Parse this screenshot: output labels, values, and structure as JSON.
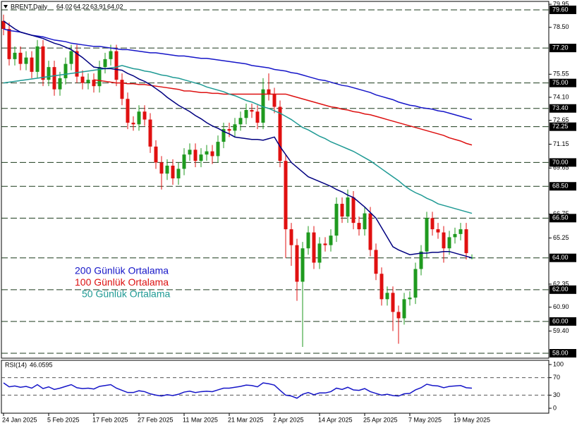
{
  "chart_data": [
    {
      "type": "candlestick",
      "title": "BRENT,Daily",
      "categories": [
        "24 Jan 2025",
        null,
        null,
        null,
        null,
        null,
        null,
        null,
        "5 Feb 2025",
        null,
        null,
        null,
        null,
        null,
        null,
        null,
        "17 Feb 2025",
        null,
        null,
        null,
        null,
        null,
        null,
        null,
        "27 Feb 2025",
        null,
        null,
        null,
        null,
        null,
        null,
        null,
        "11 Mar 2025",
        null,
        null,
        null,
        null,
        null,
        null,
        null,
        "21 Mar 2025",
        null,
        null,
        null,
        null,
        null,
        null,
        null,
        "2 Apr 2025",
        null,
        null,
        null,
        null,
        null,
        null,
        null,
        "14 Apr 2025",
        null,
        null,
        null,
        null,
        null,
        null,
        null,
        "25 Apr 2025",
        null,
        null,
        null,
        null,
        null,
        null,
        null,
        "7 May 2025",
        null,
        null,
        null,
        null,
        null,
        null,
        null,
        "19 May 2025",
        null,
        null,
        null
      ],
      "open": [
        78.9,
        78.4,
        76.5,
        76.9,
        76.2,
        76.6,
        75.7,
        77.3,
        75.2,
        76.0,
        74.6,
        75.3,
        76.2,
        77.0,
        75.4,
        75.0,
        75.2,
        74.8,
        76.0,
        76.5,
        77.0,
        75.2,
        74.0,
        72.5,
        72.4,
        73.2,
        72.7,
        71.0,
        70.0,
        69.3,
        69.8,
        69.0,
        69.6,
        70.5,
        70.8,
        70.1,
        70.5,
        70.7,
        70.4,
        71.3,
        72.1,
        72.0,
        72.4,
        72.8,
        73.3,
        73.2,
        72.5,
        74.6,
        74.3,
        73.5,
        70.1,
        65.8,
        64.8,
        62.5,
        64.6,
        65.6,
        63.7,
        64.9,
        64.8,
        65.4,
        67.4,
        66.6,
        67.8,
        66.2,
        65.8,
        66.8,
        64.5,
        63.0,
        61.4,
        61.8,
        60.6,
        60.2,
        61.4,
        61.5,
        63.3,
        64.4,
        66.5,
        65.8,
        65.6,
        64.6,
        65.3,
        65.5,
        65.8,
        64.02
      ],
      "high": [
        79.3,
        78.8,
        77.3,
        77.3,
        77.0,
        77.0,
        77.7,
        77.7,
        76.4,
        76.4,
        75.7,
        76.6,
        77.4,
        77.4,
        75.8,
        75.6,
        75.6,
        76.4,
        76.9,
        77.4,
        77.4,
        75.6,
        74.4,
        72.9,
        73.6,
        73.6,
        73.1,
        71.4,
        70.4,
        70.2,
        70.2,
        70.0,
        70.9,
        71.2,
        71.2,
        70.9,
        71.1,
        71.1,
        71.7,
        72.5,
        72.5,
        72.8,
        73.2,
        73.7,
        73.7,
        73.6,
        75.3,
        75.6,
        74.7,
        73.9,
        70.5,
        66.2,
        65.2,
        65.0,
        66.0,
        66.0,
        65.3,
        65.3,
        65.8,
        67.8,
        67.8,
        68.3,
        68.2,
        66.6,
        67.2,
        67.2,
        64.9,
        63.4,
        62.2,
        62.2,
        61.0,
        61.8,
        61.9,
        63.7,
        64.8,
        66.9,
        66.9,
        66.2,
        66.0,
        65.7,
        65.9,
        66.2,
        66.2,
        64.22
      ],
      "low": [
        78.0,
        76.1,
        76.1,
        75.8,
        75.8,
        75.3,
        75.3,
        74.8,
        74.8,
        74.2,
        74.2,
        74.9,
        75.8,
        75.0,
        74.6,
        74.6,
        74.4,
        74.4,
        75.6,
        76.1,
        74.8,
        73.6,
        72.1,
        72.0,
        72.0,
        72.3,
        70.6,
        69.6,
        68.3,
        68.9,
        68.6,
        68.6,
        69.2,
        70.1,
        69.7,
        69.7,
        70.1,
        69.9,
        70.0,
        70.9,
        71.6,
        71.6,
        72.0,
        72.4,
        72.8,
        72.1,
        72.1,
        73.9,
        73.1,
        69.7,
        64.0,
        63.5,
        61.3,
        58.4,
        64.2,
        63.3,
        63.3,
        64.4,
        64.4,
        65.0,
        66.2,
        66.2,
        65.8,
        65.4,
        65.4,
        64.1,
        62.6,
        61.0,
        61.0,
        59.4,
        58.6,
        59.8,
        61.0,
        61.1,
        62.9,
        64.0,
        65.4,
        65.2,
        63.7,
        64.2,
        64.9,
        65.1,
        63.9,
        63.91
      ],
      "close": [
        78.4,
        76.5,
        76.9,
        76.2,
        76.6,
        75.7,
        77.3,
        75.2,
        76.0,
        74.6,
        75.3,
        76.2,
        77.0,
        75.4,
        75.0,
        75.2,
        74.8,
        76.0,
        76.5,
        77.0,
        75.2,
        74.0,
        72.5,
        72.4,
        73.2,
        72.7,
        71.0,
        70.0,
        69.3,
        69.8,
        69.0,
        69.6,
        70.5,
        70.8,
        70.1,
        70.5,
        70.7,
        70.4,
        71.3,
        72.1,
        72.0,
        72.4,
        72.8,
        73.3,
        73.2,
        72.5,
        74.6,
        74.3,
        73.5,
        70.1,
        65.8,
        64.8,
        62.5,
        64.6,
        65.6,
        63.7,
        64.9,
        64.8,
        65.4,
        67.4,
        66.6,
        67.8,
        66.2,
        65.8,
        66.8,
        64.5,
        63.0,
        61.4,
        61.8,
        60.6,
        60.2,
        61.4,
        61.5,
        63.3,
        64.4,
        66.5,
        65.8,
        65.6,
        64.6,
        65.3,
        65.5,
        65.8,
        64.3,
        64.02
      ],
      "up_color": "#1f9a1f",
      "down_color": "#e01010",
      "series": [
        {
          "name": "200 Günlük Ortalama",
          "color": "#1515c8",
          "values": [
            78.4,
            78.3,
            78.25,
            78.2,
            78.1,
            78.0,
            77.95,
            77.9,
            77.8,
            77.7,
            77.65,
            77.6,
            77.5,
            77.45,
            77.4,
            77.35,
            77.3,
            77.3,
            77.25,
            77.2,
            77.15,
            77.1,
            77.1,
            77.05,
            77.0,
            76.95,
            76.9,
            76.9,
            76.85,
            76.8,
            76.75,
            76.7,
            76.7,
            76.65,
            76.6,
            76.55,
            76.55,
            76.5,
            76.45,
            76.4,
            76.35,
            76.3,
            76.25,
            76.2,
            76.1,
            76.05,
            76.0,
            75.95,
            75.85,
            75.8,
            75.75,
            75.65,
            75.6,
            75.5,
            75.4,
            75.3,
            75.2,
            75.15,
            75.05,
            74.95,
            74.85,
            74.8,
            74.7,
            74.6,
            74.5,
            74.4,
            74.25,
            74.15,
            74.05,
            73.95,
            73.8,
            73.7,
            73.6,
            73.55,
            73.45,
            73.4,
            73.35,
            73.25,
            73.2,
            73.1,
            73.0,
            72.9,
            72.8,
            72.7
          ]
        },
        {
          "name": "100 Günlük Ortalama",
          "color": "#dd1010",
          "values": [
            null,
            null,
            null,
            null,
            null,
            null,
            null,
            null,
            null,
            null,
            null,
            null,
            null,
            null,
            null,
            null,
            75.2,
            75.15,
            75.1,
            75.05,
            75.0,
            75.0,
            74.95,
            74.95,
            74.9,
            74.9,
            74.85,
            74.8,
            74.75,
            74.7,
            74.65,
            74.6,
            74.5,
            74.5,
            74.45,
            74.4,
            74.4,
            74.35,
            74.35,
            74.3,
            74.3,
            74.3,
            74.3,
            74.3,
            74.3,
            74.3,
            74.3,
            74.3,
            74.3,
            74.3,
            74.3,
            74.2,
            74.1,
            74.0,
            73.9,
            73.8,
            73.7,
            73.6,
            73.5,
            73.45,
            73.35,
            73.3,
            73.2,
            73.15,
            73.05,
            73.0,
            72.9,
            72.8,
            72.7,
            72.6,
            72.5,
            72.4,
            72.3,
            72.2,
            72.1,
            72.0,
            71.9,
            71.8,
            71.7,
            71.55,
            71.45,
            71.35,
            71.2,
            71.1
          ]
        },
        {
          "name": "50 Günlük Ortalama",
          "color": "#1f9a94",
          "values": [
            75.0,
            75.05,
            75.1,
            75.15,
            75.2,
            75.25,
            75.3,
            75.35,
            75.4,
            75.45,
            75.5,
            75.55,
            75.6,
            75.65,
            75.7,
            75.75,
            75.8,
            75.85,
            75.9,
            75.95,
            76.0,
            76.1,
            76.0,
            75.9,
            75.85,
            75.75,
            75.7,
            75.6,
            75.5,
            75.45,
            75.35,
            75.3,
            75.2,
            75.1,
            75.0,
            74.9,
            74.75,
            74.65,
            74.55,
            74.45,
            74.3,
            74.2,
            74.05,
            73.9,
            73.8,
            73.65,
            73.5,
            73.4,
            73.25,
            73.1,
            72.9,
            72.7,
            72.45,
            72.2,
            72.05,
            71.85,
            71.65,
            71.5,
            71.3,
            71.15,
            71.0,
            70.85,
            70.7,
            70.5,
            70.3,
            70.1,
            69.85,
            69.6,
            69.35,
            69.1,
            68.85,
            68.55,
            68.3,
            68.1,
            67.95,
            67.75,
            67.6,
            67.4,
            67.3,
            67.2,
            67.1,
            67.0,
            66.9,
            66.8
          ]
        },
        {
          "color": "#000080",
          "values": [
            78.9,
            78.65,
            78.4,
            78.2,
            78.1,
            78.0,
            77.9,
            77.8,
            77.65,
            77.5,
            77.4,
            77.25,
            77.1,
            76.85,
            76.6,
            76.3,
            76.0,
            75.95,
            75.9,
            75.9,
            75.85,
            75.8,
            75.6,
            75.45,
            75.25,
            75.1,
            74.9,
            74.65,
            74.4,
            74.1,
            73.85,
            73.6,
            73.4,
            73.2,
            72.95,
            72.75,
            72.5,
            72.3,
            72.15,
            71.95,
            71.8,
            71.6,
            71.55,
            71.5,
            71.45,
            71.45,
            71.4,
            71.5,
            71.6,
            71.0,
            70.5,
            70.0,
            69.7,
            69.4,
            69.1,
            68.95,
            68.8,
            68.65,
            68.5,
            68.3,
            68.15,
            67.95,
            67.8,
            67.5,
            67.2,
            66.85,
            66.5,
            65.9,
            65.3,
            64.7,
            64.5,
            64.35,
            64.2,
            64.25,
            64.3,
            64.3,
            64.35,
            64.35,
            64.4,
            64.4,
            64.3,
            64.2,
            64.1,
            64.0
          ]
        }
      ],
      "ylim": [
        57.69,
        80.13
      ],
      "yticks": [
        79.95,
        {
          "value": 78.5,
          "label": "78.50"
        },
        75.55,
        {
          "value": 74.1,
          "label": "74.10"
        },
        72.65,
        71.15,
        69.65,
        66.75,
        65.25,
        62.35,
        {
          "value": 60.9,
          "label": "60.90"
        },
        {
          "value": 59.4,
          "label": "59.40"
        }
      ],
      "levels": [
        {
          "value": 79.6,
          "label": "79.60"
        },
        {
          "value": 77.2,
          "label": "77.20"
        },
        {
          "value": 75,
          "label": "75.00"
        },
        {
          "value": 73.4,
          "label": "73.40"
        },
        72.25,
        {
          "value": 70,
          "label": "70.00"
        },
        {
          "value": 68.5,
          "label": "68.50"
        },
        {
          "value": 66.5,
          "label": "66.50"
        },
        {
          "value": 64,
          "label": "64.00"
        },
        {
          "value": 62,
          "label": "62.00"
        },
        {
          "value": 60,
          "label": "60.00"
        },
        {
          "value": 58,
          "label": "58.00"
        }
      ],
      "level_color": "#1d3b1d"
    },
    {
      "type": "line",
      "title": "RSI(14)",
      "series": [
        {
          "color": "#1515c8",
          "values": [
            58,
            49,
            51,
            48,
            50,
            46,
            54,
            45,
            49,
            43,
            46,
            50,
            54,
            47,
            45,
            46,
            44,
            50,
            52,
            54,
            46,
            41,
            36,
            36,
            40,
            38,
            33,
            30,
            28,
            31,
            29,
            32,
            37,
            39,
            36,
            38,
            39,
            38,
            42,
            46,
            46,
            48,
            50,
            53,
            52,
            49,
            58,
            56,
            53,
            41,
            30,
            28,
            23,
            32,
            36,
            31,
            35,
            35,
            38,
            46,
            43,
            48,
            42,
            41,
            45,
            38,
            34,
            30,
            32,
            29,
            28,
            33,
            34,
            42,
            47,
            55,
            52,
            51,
            47,
            50,
            51,
            52,
            47,
            46.0595
          ]
        }
      ],
      "ylim": [
        -11.3,
        109.7
      ],
      "yticks": [
        100,
        70,
        30,
        0
      ],
      "levels": [
        70,
        30
      ],
      "level_color": "#555"
    }
  ]
}
